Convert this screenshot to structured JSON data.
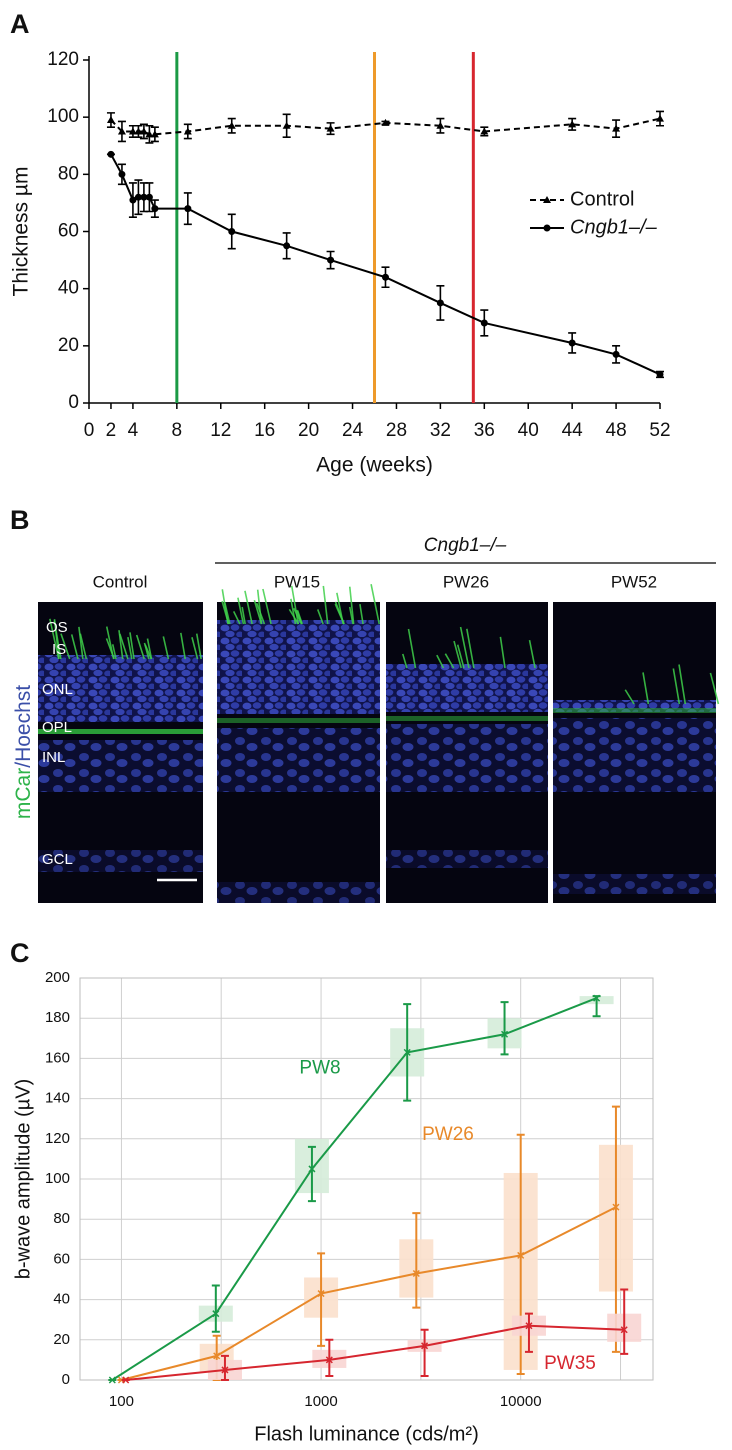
{
  "chart_data": [
    {
      "panel_label": "A",
      "type": "line",
      "xlabel": "Age (weeks)",
      "ylabel": "Thickness µm",
      "xlim": [
        0,
        52
      ],
      "ylim": [
        0,
        120
      ],
      "xticks": [
        0,
        2,
        4,
        8,
        12,
        16,
        20,
        24,
        28,
        32,
        36,
        40,
        44,
        48,
        52
      ],
      "yticks": [
        0,
        20,
        40,
        60,
        80,
        100,
        120
      ],
      "series": [
        {
          "name": "Control",
          "color": "#000000",
          "marker": "triangle",
          "dash": true,
          "x": [
            2,
            3,
            4,
            4.5,
            5,
            5.5,
            6,
            9,
            13,
            18,
            22,
            27,
            32,
            36,
            44,
            48,
            52
          ],
          "values": [
            99,
            95,
            95,
            95,
            95,
            94,
            94,
            95,
            97,
            97,
            96,
            98,
            97,
            95,
            97.5,
            96,
            99.5
          ],
          "errors": [
            2.5,
            3.5,
            2,
            2,
            2.5,
            3,
            2.5,
            2.5,
            2.5,
            4,
            2,
            0.5,
            2.5,
            1.5,
            2,
            3,
            2.5
          ]
        },
        {
          "name": "Cngb1–/–",
          "color": "#000000",
          "marker": "circle",
          "dash": false,
          "font_style": "italic",
          "x": [
            2,
            3,
            4,
            4.5,
            5,
            5.5,
            6,
            9,
            13,
            18,
            22,
            27,
            32,
            36,
            44,
            48,
            52
          ],
          "values": [
            87,
            80,
            71,
            72,
            72,
            72,
            68,
            68,
            60,
            55,
            50,
            44,
            35,
            28,
            21,
            17,
            10
          ],
          "errors": [
            0,
            3.5,
            6,
            6,
            5,
            5,
            3,
            5.5,
            6,
            4.5,
            3,
            3.5,
            6,
            4.5,
            3.5,
            3,
            1
          ]
        }
      ],
      "vlines": [
        {
          "x": 8,
          "color": "#1b9a45"
        },
        {
          "x": 26,
          "color": "#ee9a2a"
        },
        {
          "x": 35,
          "color": "#d7262e"
        }
      ]
    },
    {
      "panel_label": "C",
      "type": "box",
      "xlabel": "Flash luminance (cds/m²)",
      "ylabel": "b-wave amplitude (µV)",
      "xscale": "log",
      "xlim": [
        62,
        46000
      ],
      "ylim": [
        0,
        200
      ],
      "xticks": [
        100,
        1000,
        10000
      ],
      "xminor": [
        316,
        3162,
        31623
      ],
      "yticks": [
        0,
        20,
        40,
        60,
        80,
        100,
        120,
        140,
        160,
        180,
        200
      ],
      "grid": true,
      "series": [
        {
          "name": "PW8",
          "color": "#1a9a48",
          "box_color": "#d5ecd9",
          "x": [
            90,
            297,
            900,
            2700,
            8300,
            24000
          ],
          "values": [
            0,
            33,
            105,
            163,
            172,
            190
          ],
          "box_low": [
            0,
            29,
            93,
            151,
            165,
            187
          ],
          "box_high": [
            0,
            37,
            120,
            175,
            180,
            191
          ],
          "whisker_low": [
            0,
            24,
            89,
            139,
            162,
            181
          ],
          "whisker_high": [
            0,
            47,
            116,
            187,
            188,
            191
          ]
        },
        {
          "name": "PW26",
          "color": "#e8892a",
          "box_color": "#fbe0cc",
          "x": [
            100,
            300,
            1000,
            3000,
            10000,
            30000
          ],
          "values": [
            0,
            12,
            43,
            53,
            62,
            86
          ],
          "box_low": [
            0,
            4,
            31,
            41,
            5,
            44
          ],
          "box_high": [
            0,
            18,
            51,
            70,
            103,
            117
          ],
          "whisker_low": [
            0,
            0,
            17,
            36,
            3,
            14
          ],
          "whisker_high": [
            0,
            22,
            63,
            83,
            122,
            136
          ]
        },
        {
          "name": "PW35",
          "color": "#d6262f",
          "box_color": "#f8d5d3",
          "x": [
            105,
            330,
            1100,
            3300,
            11000,
            33000
          ],
          "values": [
            0,
            5,
            10,
            17,
            27,
            25
          ],
          "box_low": [
            0,
            0,
            6,
            14,
            22,
            19
          ],
          "box_high": [
            0,
            10,
            15,
            20,
            32,
            33
          ],
          "whisker_low": [
            0,
            0,
            2,
            2,
            14,
            13
          ],
          "whisker_high": [
            0,
            12,
            20,
            25,
            33,
            45
          ]
        }
      ]
    }
  ],
  "micrograph": {
    "panel_label": "B",
    "group_label": "Cngb1–/–",
    "columns": [
      "Control",
      "PW15",
      "PW26",
      "PW52"
    ],
    "layers": [
      "OS",
      "IS",
      "ONL",
      "OPL",
      "INL",
      "GCL"
    ],
    "stain_label": [
      {
        "text": "mCar",
        "color": "#2db34a"
      },
      {
        "text": "/Hoechst",
        "color": "#3b4fa8"
      }
    ]
  }
}
